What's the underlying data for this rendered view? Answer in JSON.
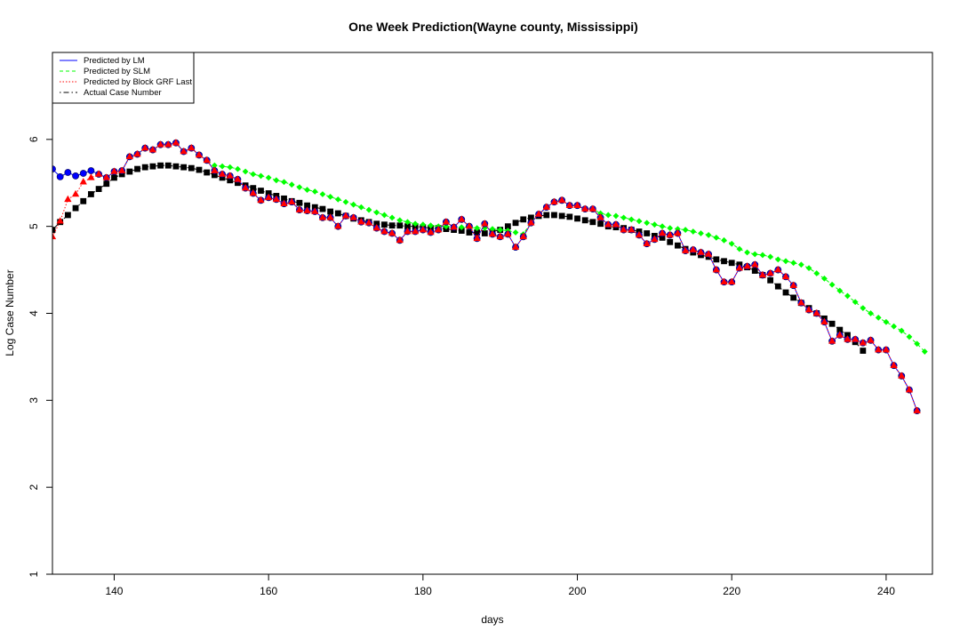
{
  "chart_data": {
    "type": "line",
    "title": "One Week Prediction(Wayne county, Mississippi)",
    "xlabel": "days",
    "ylabel": "Log Case Number",
    "xlim": [
      132,
      246
    ],
    "ylim": [
      1,
      7
    ],
    "x_ticks": [
      "140",
      "160",
      "180",
      "200",
      "220",
      "240"
    ],
    "y_ticks": [
      "1",
      "2",
      "3",
      "4",
      "5",
      "6"
    ],
    "legend_position": "top-left",
    "grid": false,
    "x_start": 132,
    "series": [
      {
        "name": "Predicted by LM",
        "color": "#0000ff",
        "marker": "circle",
        "line": "solid",
        "values": [
          5.66,
          5.57,
          5.62,
          5.58,
          5.61,
          5.64,
          5.6,
          5.56,
          5.63,
          5.64,
          5.8,
          5.83,
          5.9,
          5.88,
          5.94,
          5.94,
          5.96,
          5.86,
          5.9,
          5.82,
          5.76,
          5.64,
          5.6,
          5.58,
          5.54,
          5.44,
          5.38,
          5.3,
          5.33,
          5.31,
          5.26,
          5.28,
          5.19,
          5.18,
          5.17,
          5.1,
          5.1,
          5.0,
          5.12,
          5.1,
          5.05,
          5.04,
          4.98,
          4.94,
          4.92,
          4.84,
          4.94,
          4.94,
          4.96,
          4.93,
          4.96,
          5.05,
          4.99,
          5.08,
          5.0,
          4.86,
          5.03,
          4.91,
          4.88,
          4.91,
          4.76,
          4.88,
          5.04,
          5.14,
          5.22,
          5.28,
          5.3,
          5.24,
          5.24,
          5.2,
          5.2,
          5.1,
          5.02,
          5.02,
          4.96,
          4.96,
          4.9,
          4.8,
          4.85,
          4.92,
          4.9,
          4.92,
          4.72,
          4.73,
          4.7,
          4.68,
          4.5,
          4.36,
          4.36,
          4.52,
          4.54,
          4.56,
          4.44,
          4.46,
          4.5,
          4.42,
          4.32,
          4.12,
          4.04,
          4.0,
          3.9,
          3.68,
          3.75,
          3.7,
          3.7,
          3.66,
          3.69,
          3.58,
          3.58,
          3.4,
          3.28,
          3.12,
          2.88
        ]
      },
      {
        "name": "Predicted by SLM",
        "color": "#00ff00",
        "marker": "diamond",
        "line": "dashed",
        "values": [
          5.66,
          5.57,
          5.62,
          5.58,
          5.61,
          5.64,
          5.6,
          5.56,
          5.63,
          5.64,
          5.8,
          5.83,
          5.9,
          5.88,
          5.94,
          5.94,
          5.96,
          5.86,
          5.9,
          5.82,
          5.76,
          5.7,
          5.69,
          5.68,
          5.66,
          5.63,
          5.6,
          5.58,
          5.56,
          5.53,
          5.51,
          5.48,
          5.45,
          5.42,
          5.4,
          5.37,
          5.34,
          5.31,
          5.28,
          5.25,
          5.22,
          5.19,
          5.16,
          5.13,
          5.1,
          5.07,
          5.05,
          5.03,
          5.02,
          5.01,
          5.0,
          5.0,
          4.99,
          4.99,
          4.99,
          4.98,
          4.98,
          4.97,
          4.96,
          4.95,
          4.93,
          4.91,
          5.05,
          5.14,
          5.22,
          5.28,
          5.3,
          5.24,
          5.24,
          5.2,
          5.2,
          5.15,
          5.13,
          5.12,
          5.1,
          5.08,
          5.06,
          5.04,
          5.02,
          5.0,
          4.98,
          4.97,
          4.96,
          4.94,
          4.92,
          4.9,
          4.87,
          4.84,
          4.8,
          4.74,
          4.7,
          4.68,
          4.67,
          4.65,
          4.62,
          4.6,
          4.58,
          4.56,
          4.52,
          4.46,
          4.4,
          4.33,
          4.26,
          4.2,
          4.13,
          4.06,
          4.0,
          3.95,
          3.9,
          3.85,
          3.8,
          3.73,
          3.65,
          3.56
        ]
      },
      {
        "name": "Predicted by Block GRF Last",
        "color": "#ff0000",
        "marker": "triangle",
        "line": "dotted",
        "values": [
          4.88,
          5.06,
          5.31,
          5.37,
          5.51,
          5.56,
          5.6,
          5.56,
          5.63,
          5.64,
          5.8,
          5.83,
          5.9,
          5.88,
          5.94,
          5.94,
          5.96,
          5.86,
          5.9,
          5.82,
          5.76,
          5.64,
          5.6,
          5.58,
          5.54,
          5.44,
          5.38,
          5.3,
          5.33,
          5.31,
          5.26,
          5.28,
          5.19,
          5.18,
          5.17,
          5.1,
          5.1,
          5.0,
          5.12,
          5.1,
          5.05,
          5.04,
          4.98,
          4.94,
          4.92,
          4.84,
          4.94,
          4.94,
          4.96,
          4.93,
          4.96,
          5.05,
          4.99,
          5.08,
          5.0,
          4.86,
          5.03,
          4.91,
          4.88,
          4.91,
          4.76,
          4.88,
          5.04,
          5.14,
          5.22,
          5.28,
          5.3,
          5.24,
          5.24,
          5.2,
          5.2,
          5.1,
          5.02,
          5.02,
          4.96,
          4.96,
          4.9,
          4.8,
          4.85,
          4.92,
          4.9,
          4.92,
          4.72,
          4.73,
          4.7,
          4.68,
          4.5,
          4.36,
          4.36,
          4.52,
          4.54,
          4.56,
          4.44,
          4.46,
          4.5,
          4.42,
          4.32,
          4.12,
          4.04,
          4.0,
          3.9,
          3.68,
          3.75,
          3.7,
          3.7,
          3.66,
          3.69,
          3.58,
          3.58,
          3.4,
          3.28,
          3.12,
          2.88
        ]
      },
      {
        "name": "Actual Case Number",
        "color": "#000000",
        "marker": "square",
        "line": "dotdash",
        "values": [
          4.96,
          5.05,
          5.13,
          5.21,
          5.29,
          5.37,
          5.43,
          5.49,
          5.56,
          5.6,
          5.63,
          5.66,
          5.68,
          5.69,
          5.7,
          5.7,
          5.69,
          5.68,
          5.67,
          5.65,
          5.62,
          5.59,
          5.56,
          5.53,
          5.5,
          5.47,
          5.44,
          5.41,
          5.38,
          5.35,
          5.32,
          5.29,
          5.27,
          5.24,
          5.22,
          5.2,
          5.17,
          5.15,
          5.12,
          5.09,
          5.07,
          5.05,
          5.03,
          5.02,
          5.01,
          5.01,
          5.0,
          5.0,
          4.99,
          4.98,
          4.98,
          4.97,
          4.96,
          4.95,
          4.93,
          4.93,
          4.92,
          4.94,
          4.96,
          5.0,
          5.04,
          5.08,
          5.1,
          5.12,
          5.13,
          5.13,
          5.12,
          5.11,
          5.09,
          5.07,
          5.05,
          5.03,
          5.0,
          4.99,
          4.98,
          4.96,
          4.94,
          4.92,
          4.89,
          4.87,
          4.82,
          4.78,
          4.74,
          4.7,
          4.67,
          4.65,
          4.62,
          4.6,
          4.58,
          4.56,
          4.53,
          4.49,
          4.44,
          4.38,
          4.31,
          4.24,
          4.18,
          4.12,
          4.06,
          4.0,
          3.94,
          3.88,
          3.81,
          3.75,
          3.67,
          3.57
        ]
      }
    ]
  }
}
